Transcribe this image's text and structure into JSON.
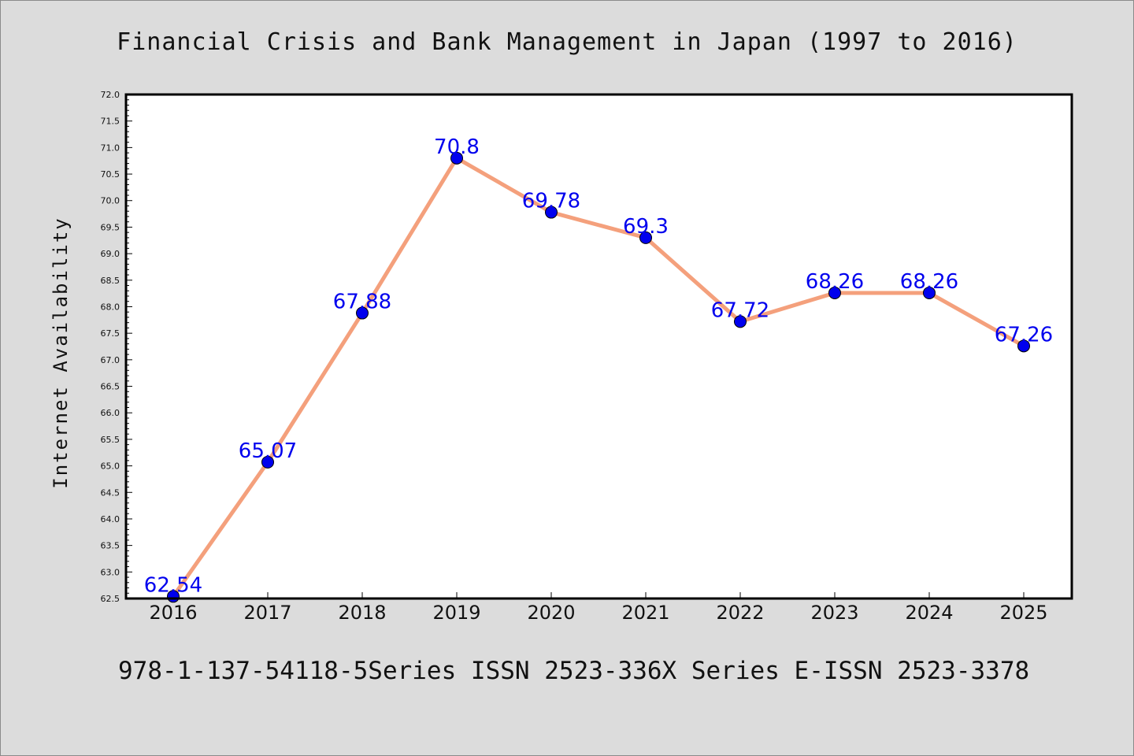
{
  "chart_data": {
    "type": "line",
    "title": "Financial Crisis and Bank Management in Japan (1997 to 2016)",
    "xlabel": "",
    "ylabel": "Internet Availability",
    "footer": "978-1-137-54118-5Series ISSN 2523-336X Series E-ISSN 2523-3378",
    "categories": [
      "2016",
      "2017",
      "2018",
      "2019",
      "2020",
      "2021",
      "2022",
      "2023",
      "2024",
      "2025"
    ],
    "series": [
      {
        "values": [
          62.54,
          65.07,
          67.88,
          70.8,
          69.78,
          69.3,
          67.72,
          68.26,
          68.26,
          67.26
        ],
        "labels": [
          "62.54",
          "65.07",
          "67.88",
          "70.8",
          "69.78",
          "69.3",
          "67.72",
          "68.26",
          "68.26",
          "67.26"
        ]
      }
    ],
    "ylim": [
      62.5,
      72.0
    ],
    "yticks": [
      "62.5",
      "63.0",
      "63.5",
      "64.0",
      "64.5",
      "65.0",
      "65.5",
      "66.0",
      "66.5",
      "67.0",
      "67.5",
      "68.0",
      "68.5",
      "69.0",
      "69.5",
      "70.0",
      "70.5",
      "71.0",
      "71.5",
      "72.0"
    ],
    "grid": false,
    "legend": "none",
    "colors": {
      "line": "#f4a07c",
      "marker": "#0000ee",
      "data_label": "#0000ee",
      "background": "#dcdcdc",
      "plot_background": "#ffffff"
    }
  }
}
